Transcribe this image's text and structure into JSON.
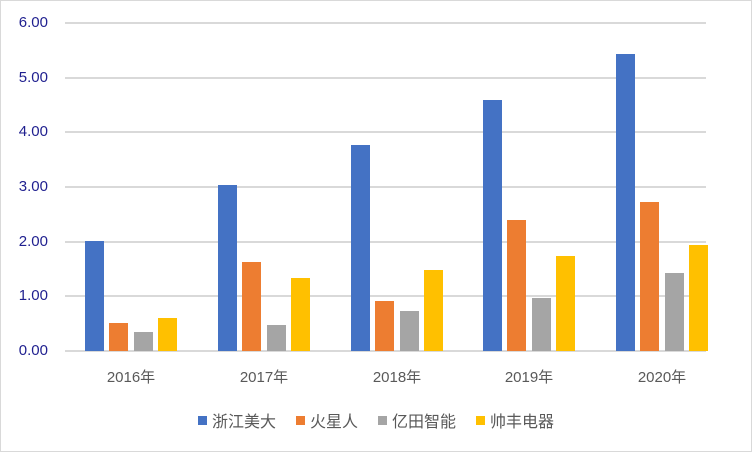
{
  "chart_data": {
    "type": "bar",
    "title": "",
    "xlabel": "",
    "ylabel": "",
    "ylim": [
      0,
      6
    ],
    "yticks": [
      "0.00",
      "1.00",
      "2.00",
      "3.00",
      "4.00",
      "5.00",
      "6.00"
    ],
    "grid": true,
    "legend_position": "bottom",
    "categories": [
      "2016年",
      "2017年",
      "2018年",
      "2019年",
      "2020年"
    ],
    "series": [
      {
        "name": "浙江美大",
        "color": "#4472c4",
        "values": [
          2.02,
          3.04,
          3.77,
          4.6,
          5.44
        ]
      },
      {
        "name": "火星人",
        "color": "#ed7d31",
        "values": [
          0.52,
          1.62,
          0.91,
          2.39,
          2.73
        ]
      },
      {
        "name": "亿田智能",
        "color": "#a5a5a5",
        "values": [
          0.34,
          0.48,
          0.74,
          0.97,
          1.43
        ]
      },
      {
        "name": "帅丰电器",
        "color": "#ffc000",
        "values": [
          0.61,
          1.33,
          1.49,
          1.73,
          1.93
        ]
      }
    ]
  }
}
